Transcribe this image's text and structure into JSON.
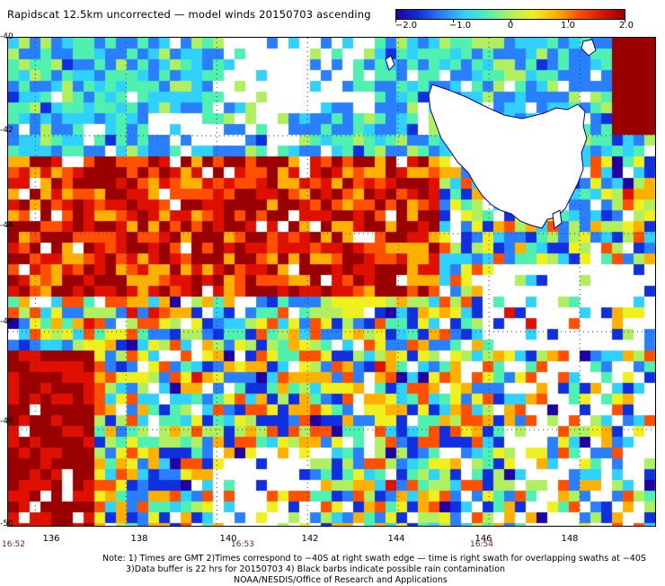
{
  "title": "Rapidscat 12.5km uncorrected — model winds 20150703 ascending",
  "colorbar": {
    "ticks": [
      "−2.0",
      "−1.0",
      "0",
      "1.0",
      "2.0"
    ],
    "range": [
      -2.0,
      2.0
    ],
    "colors": [
      "#2000a0",
      "#1030e0",
      "#2a7fff",
      "#30d0ff",
      "#50f0b0",
      "#b0f060",
      "#f0f020",
      "#ffb000",
      "#ff5000",
      "#e01000",
      "#9a0000"
    ]
  },
  "map": {
    "lat_labels": [
      "-40",
      "-42",
      "-44",
      "-46",
      "-48",
      "-50"
    ],
    "lon_labels": [
      "136",
      "138",
      "140",
      "142",
      "144",
      "146",
      "148"
    ],
    "time_labels": [
      "16:52",
      "16:53",
      "16:54"
    ],
    "lat_range": [
      -50,
      -40
    ],
    "lon_range": [
      135.4,
      149.7
    ],
    "land": "Tasmania",
    "grid": "dotted"
  },
  "notes": [
    "Note: 1) Times are GMT 2)Times correspond to −40S at right swath edge — time is right swath for overlapping swaths at −40S",
    "3)Data buffer is 22 hrs for 20150703 4) Black barbs indicate possible rain contamination",
    "NOAA/NESDIS/Office of Research and Applications"
  ]
}
